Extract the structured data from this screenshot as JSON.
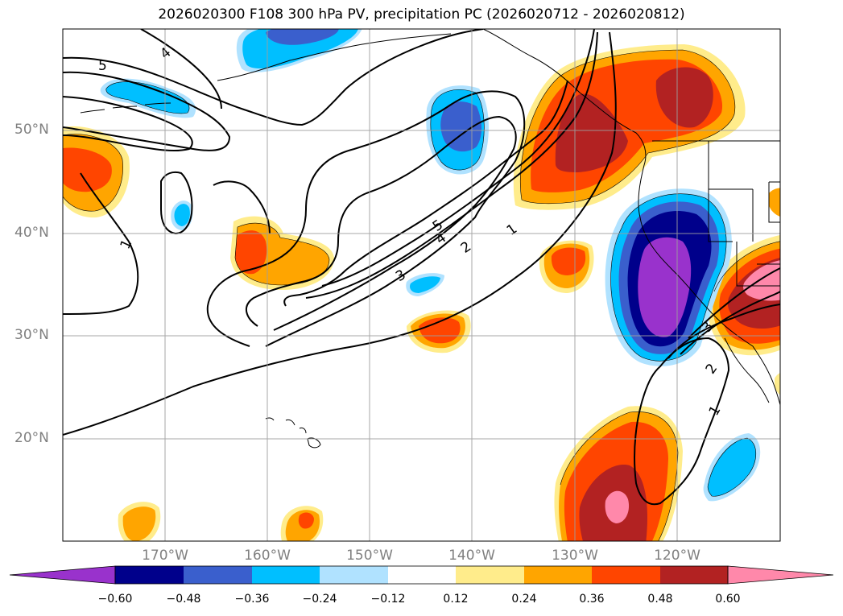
{
  "title": "2026020300 F108 300 hPa PV, precipitation PC (2026020712 - 2026020812)",
  "latitude_labels": [
    "50°N",
    "40°N",
    "30°N",
    "20°N"
  ],
  "longitude_labels": [
    "170°W",
    "160°W",
    "150°W",
    "140°W",
    "130°W",
    "120°W"
  ],
  "contour_labels": [
    "5",
    "4",
    "1",
    "5",
    "4",
    "2",
    "1",
    "3",
    "3",
    "2",
    "1"
  ],
  "colorbar": {
    "tick_labels": [
      "−0.60",
      "−0.48",
      "−0.36",
      "−0.24",
      "−0.12",
      "0.12",
      "0.24",
      "0.36",
      "0.48",
      "0.60"
    ],
    "colors": [
      "#9932CC",
      "#00008B",
      "#3A5FCD",
      "#00BFFF",
      "#B0E2FF",
      "#FFFFFF",
      "#FFEC8B",
      "#FFA500",
      "#FF4500",
      "#B22222",
      "#FF88AA"
    ]
  }
}
